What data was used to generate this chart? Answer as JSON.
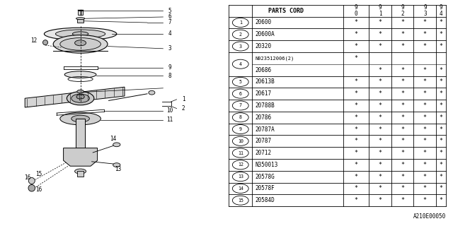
{
  "diagram_code": "A210E00050",
  "bg_color": "#ffffff",
  "line_color": "#000000",
  "text_color": "#000000",
  "display_rows": [
    {
      "num": "1",
      "part": "20600",
      "cols": [
        "*",
        "*",
        "*",
        "*",
        "*"
      ],
      "sub": false
    },
    {
      "num": "2",
      "part": "20600A",
      "cols": [
        "*",
        "*",
        "*",
        "*",
        "*"
      ],
      "sub": false
    },
    {
      "num": "3",
      "part": "20320",
      "cols": [
        "*",
        "*",
        "*",
        "*",
        "*"
      ],
      "sub": false
    },
    {
      "num": "4",
      "part": "N023512006(2)",
      "cols": [
        "*",
        "",
        "",
        "",
        ""
      ],
      "sub": true,
      "sub2": "20686",
      "cols2": [
        "",
        "*",
        "*",
        "*",
        "*"
      ]
    },
    {
      "num": "5",
      "part": "20613B",
      "cols": [
        "*",
        "*",
        "*",
        "*",
        "*"
      ],
      "sub": false
    },
    {
      "num": "6",
      "part": "20617",
      "cols": [
        "*",
        "*",
        "*",
        "*",
        "*"
      ],
      "sub": false
    },
    {
      "num": "7",
      "part": "20788B",
      "cols": [
        "*",
        "*",
        "*",
        "*",
        "*"
      ],
      "sub": false
    },
    {
      "num": "8",
      "part": "20786",
      "cols": [
        "*",
        "*",
        "*",
        "*",
        "*"
      ],
      "sub": false
    },
    {
      "num": "9",
      "part": "20787A",
      "cols": [
        "*",
        "*",
        "*",
        "*",
        "*"
      ],
      "sub": false
    },
    {
      "num": "10",
      "part": "20787",
      "cols": [
        "*",
        "*",
        "*",
        "*",
        "*"
      ],
      "sub": false
    },
    {
      "num": "11",
      "part": "20712",
      "cols": [
        "*",
        "*",
        "*",
        "*",
        "*"
      ],
      "sub": false
    },
    {
      "num": "12",
      "part": "N350013",
      "cols": [
        "*",
        "*",
        "*",
        "*",
        "*"
      ],
      "sub": false
    },
    {
      "num": "13",
      "part": "20578G",
      "cols": [
        "*",
        "*",
        "*",
        "*",
        "*"
      ],
      "sub": false
    },
    {
      "num": "14",
      "part": "20578F",
      "cols": [
        "*",
        "*",
        "*",
        "*",
        "*"
      ],
      "sub": false
    },
    {
      "num": "15",
      "part": "20584D",
      "cols": [
        "*",
        "*",
        "*",
        "*",
        "*"
      ],
      "sub": false
    }
  ]
}
